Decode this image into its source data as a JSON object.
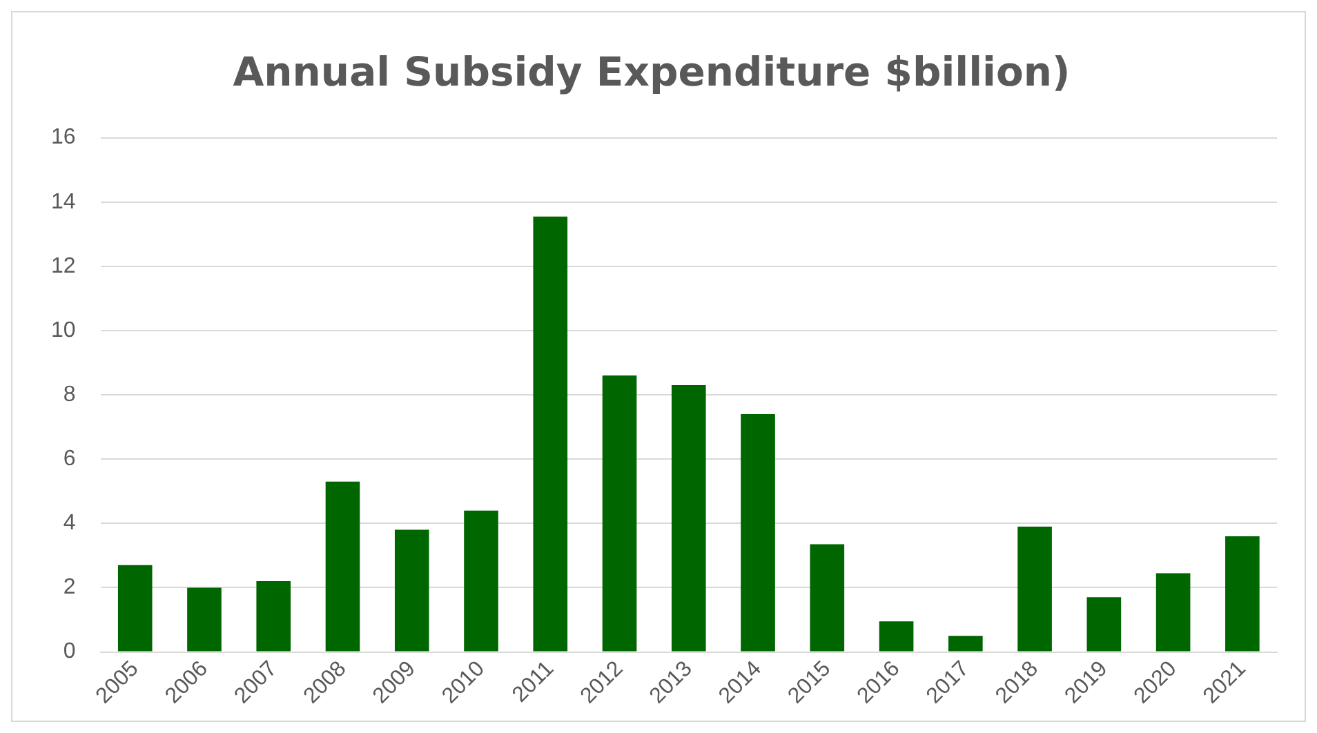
{
  "chart_data": {
    "type": "bar",
    "title": "Annual Subsidy Expenditure $billion)",
    "categories": [
      "2005",
      "2006",
      "2007",
      "2008",
      "2009",
      "2010",
      "2011",
      "2012",
      "2013",
      "2014",
      "2015",
      "2016",
      "2017",
      "2018",
      "2019",
      "2020",
      "2021"
    ],
    "values": [
      2.7,
      2.0,
      2.2,
      5.3,
      3.8,
      4.4,
      13.55,
      8.6,
      8.3,
      7.4,
      3.35,
      0.95,
      0.5,
      3.9,
      1.7,
      2.45,
      3.6
    ],
    "color": "#006600",
    "ylim": [
      0,
      16
    ],
    "yticks": [
      0,
      2,
      4,
      6,
      8,
      10,
      12,
      14,
      16
    ],
    "grid": "y",
    "legend": false
  }
}
